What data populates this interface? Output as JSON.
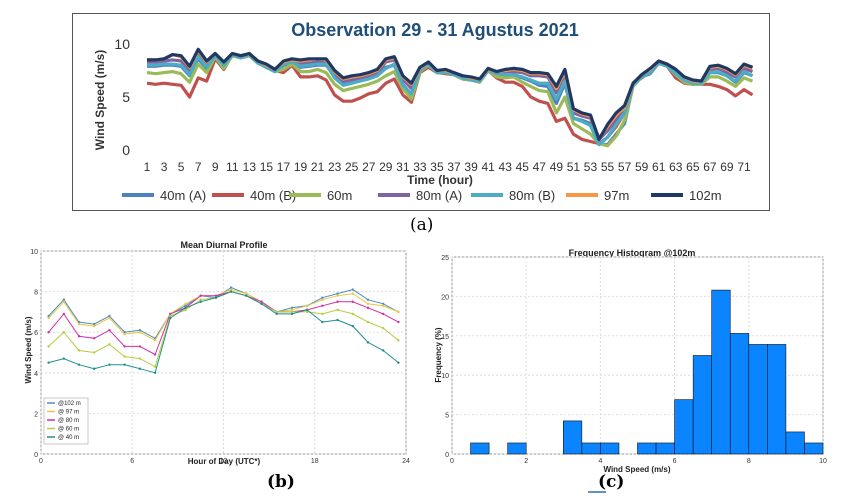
{
  "colors": {
    "s40a": "#4f81bd",
    "s40b": "#c0504d",
    "s60": "#9bbb59",
    "s80a": "#8064a2",
    "s80b": "#4bacc6",
    "s97": "#f79646",
    "s102": "#1f3864",
    "d102": "#4f8fc4",
    "d97": "#e8c840",
    "d80": "#d22fa8",
    "d60": "#b8cc40",
    "d40": "#1e8f8f",
    "hist": "#0a84ff",
    "title_a": "#1f4e79"
  },
  "panel_labels": {
    "a": "(a)",
    "b": "(b)",
    "c": "(c)"
  },
  "chart_data": [
    {
      "id": "a",
      "type": "line",
      "title": "Observation 29 - 31 Agustus 2021",
      "xlabel": "Time (hour)",
      "ylabel": "Wind Speed  (m/s)",
      "ylim": [
        0,
        10
      ],
      "yticks": [
        "0",
        "5",
        "10"
      ],
      "xticks": [
        "1",
        "3",
        "5",
        "7",
        "9",
        "11",
        "13",
        "15",
        "17",
        "19",
        "21",
        "23",
        "25",
        "27",
        "29",
        "31",
        "33",
        "35",
        "37",
        "39",
        "41",
        "43",
        "45",
        "47",
        "49",
        "51",
        "53",
        "55",
        "57",
        "59",
        "61",
        "63",
        "65",
        "67",
        "69",
        "71"
      ],
      "grid": false,
      "legend": "bottom",
      "x": [
        1,
        2,
        3,
        4,
        5,
        6,
        7,
        8,
        9,
        10,
        11,
        12,
        13,
        14,
        15,
        16,
        17,
        18,
        19,
        20,
        21,
        22,
        23,
        24,
        25,
        26,
        27,
        28,
        29,
        30,
        31,
        32,
        33,
        34,
        35,
        36,
        37,
        38,
        39,
        40,
        41,
        42,
        43,
        44,
        45,
        46,
        47,
        48,
        49,
        50,
        51,
        52,
        53,
        54,
        55,
        56,
        57,
        58,
        59,
        60,
        61,
        62,
        63,
        64,
        65,
        66,
        67,
        68,
        69,
        70,
        71,
        72
      ],
      "series": [
        {
          "name": "40m (A)",
          "color_key": "s40a",
          "values": [
            7.9,
            7.9,
            8.0,
            8.0,
            7.9,
            7.0,
            8.6,
            7.7,
            8.9,
            7.9,
            8.9,
            8.7,
            8.9,
            8.2,
            7.8,
            7.4,
            8.0,
            8.2,
            7.8,
            7.9,
            8.0,
            8.0,
            7.0,
            6.2,
            6.3,
            6.6,
            6.8,
            7.0,
            7.8,
            8.0,
            6.2,
            5.2,
            7.5,
            8.0,
            7.3,
            7.3,
            7.1,
            6.8,
            6.6,
            6.5,
            7.5,
            7.2,
            7.0,
            7.1,
            6.8,
            6.5,
            6.1,
            6.0,
            4.4,
            6.3,
            3.0,
            2.8,
            2.5,
            0.6,
            0.5,
            1.5,
            2.5,
            6.1,
            6.9,
            7.2,
            8.2,
            7.9,
            7.3,
            6.5,
            6.2,
            6.3,
            7.3,
            7.3,
            7.0,
            6.4,
            7.3,
            7.0
          ]
        },
        {
          "name": "40m (B)",
          "color_key": "s40b",
          "values": [
            6.3,
            6.2,
            6.3,
            6.2,
            6.1,
            5.0,
            6.8,
            6.5,
            8.6,
            7.6,
            9.0,
            8.7,
            9.0,
            8.2,
            7.9,
            7.5,
            7.3,
            8.0,
            6.9,
            6.9,
            7.0,
            6.6,
            5.2,
            4.6,
            4.6,
            4.9,
            5.3,
            5.5,
            6.3,
            6.7,
            5.2,
            4.5,
            7.3,
            7.8,
            7.3,
            7.2,
            7.1,
            6.7,
            6.6,
            6.4,
            7.5,
            6.8,
            6.4,
            6.4,
            6.0,
            5.0,
            4.6,
            4.4,
            2.7,
            3.0,
            1.5,
            1.0,
            0.8,
            0.6,
            1.2,
            2.2,
            3.5,
            6.2,
            6.8,
            7.4,
            8.2,
            7.9,
            6.8,
            6.3,
            6.2,
            6.2,
            6.2,
            6.0,
            5.7,
            5.1,
            5.7,
            5.2
          ]
        },
        {
          "name": "60m",
          "color_key": "s60",
          "values": [
            7.3,
            7.2,
            7.3,
            7.4,
            7.2,
            6.4,
            8.1,
            7.3,
            8.8,
            7.7,
            8.9,
            8.7,
            8.9,
            8.2,
            7.8,
            7.4,
            7.6,
            8.1,
            7.4,
            7.4,
            7.6,
            7.3,
            6.2,
            5.6,
            5.8,
            6.0,
            6.2,
            6.5,
            7.0,
            7.4,
            5.8,
            4.8,
            7.4,
            8.0,
            7.3,
            7.3,
            7.1,
            6.7,
            6.6,
            6.4,
            7.5,
            6.9,
            6.8,
            6.9,
            6.4,
            6.0,
            5.6,
            5.5,
            3.5,
            5.0,
            2.5,
            2.0,
            1.5,
            0.6,
            0.4,
            1.3,
            2.8,
            6.0,
            6.9,
            7.3,
            8.2,
            7.9,
            7.1,
            6.4,
            6.2,
            6.2,
            6.9,
            6.9,
            6.5,
            6.0,
            6.8,
            6.5
          ]
        },
        {
          "name": "80m (A)",
          "color_key": "s80a",
          "values": [
            8.3,
            8.3,
            8.4,
            8.5,
            8.4,
            7.5,
            9.0,
            8.1,
            9.0,
            8.2,
            9.0,
            8.8,
            9.0,
            8.3,
            7.9,
            7.5,
            8.2,
            8.4,
            8.2,
            8.2,
            8.3,
            8.3,
            7.2,
            6.5,
            6.6,
            6.8,
            7.0,
            7.3,
            8.3,
            8.5,
            6.7,
            5.8,
            7.6,
            8.2,
            7.4,
            7.4,
            7.2,
            6.9,
            6.7,
            6.6,
            7.6,
            7.3,
            7.4,
            7.4,
            7.3,
            7.0,
            7.0,
            6.9,
            5.4,
            7.0,
            3.5,
            3.2,
            3.0,
            1.0,
            1.8,
            2.8,
            3.8,
            6.2,
            7.0,
            7.5,
            8.3,
            8.0,
            7.4,
            6.7,
            6.4,
            6.5,
            7.6,
            7.7,
            7.3,
            6.9,
            7.7,
            7.4
          ]
        },
        {
          "name": "80m (B)",
          "color_key": "s80b",
          "values": [
            8.0,
            8.0,
            8.1,
            8.1,
            8.0,
            7.1,
            8.8,
            7.8,
            8.9,
            8.0,
            9.0,
            8.7,
            9.0,
            8.2,
            7.8,
            7.4,
            8.1,
            8.3,
            7.9,
            8.0,
            8.1,
            8.1,
            6.8,
            6.1,
            6.3,
            6.5,
            6.7,
            7.0,
            7.7,
            8.1,
            6.1,
            5.3,
            7.5,
            8.1,
            7.3,
            7.3,
            7.1,
            6.8,
            6.6,
            6.5,
            7.5,
            7.2,
            7.1,
            7.1,
            6.9,
            6.6,
            6.3,
            6.3,
            4.8,
            6.5,
            3.0,
            2.7,
            2.3,
            0.5,
            1.2,
            2.4,
            3.5,
            6.1,
            6.9,
            7.3,
            8.2,
            7.9,
            7.2,
            6.6,
            6.3,
            6.3,
            7.3,
            7.4,
            7.0,
            6.5,
            7.4,
            7.0
          ]
        },
        {
          "name": "97m",
          "color_key": "s97",
          "values": [
            8.5,
            8.5,
            8.6,
            9.0,
            8.8,
            7.8,
            9.4,
            8.3,
            9.1,
            8.3,
            9.1,
            8.9,
            9.1,
            8.4,
            8.0,
            7.6,
            8.3,
            8.5,
            8.4,
            8.5,
            8.6,
            8.5,
            7.4,
            6.7,
            6.9,
            7.0,
            7.2,
            7.5,
            8.5,
            8.7,
            6.9,
            6.2,
            7.7,
            8.3,
            7.5,
            7.5,
            7.3,
            7.0,
            6.8,
            6.7,
            7.6,
            7.4,
            7.5,
            7.6,
            7.5,
            7.2,
            7.2,
            7.1,
            5.8,
            7.4,
            3.8,
            3.4,
            3.2,
            1.1,
            2.2,
            3.3,
            4.0,
            6.3,
            7.1,
            7.6,
            8.4,
            8.1,
            7.6,
            6.9,
            6.5,
            6.5,
            7.8,
            7.9,
            7.6,
            7.1,
            8.0,
            7.7
          ]
        },
        {
          "name": "102m",
          "color_key": "s102",
          "values": [
            8.5,
            8.5,
            8.6,
            9.0,
            8.9,
            7.9,
            9.5,
            8.4,
            9.1,
            8.3,
            9.1,
            8.9,
            9.1,
            8.4,
            8.1,
            7.6,
            8.4,
            8.6,
            8.5,
            8.6,
            8.6,
            8.6,
            7.5,
            6.8,
            7.0,
            7.1,
            7.3,
            7.6,
            8.6,
            8.8,
            7.0,
            6.3,
            7.8,
            8.3,
            7.5,
            7.6,
            7.3,
            7.0,
            6.9,
            6.7,
            7.7,
            7.4,
            7.6,
            7.7,
            7.6,
            7.3,
            7.3,
            7.2,
            6.0,
            7.6,
            3.9,
            3.5,
            3.3,
            1.0,
            2.4,
            3.5,
            4.2,
            6.3,
            7.1,
            7.7,
            8.4,
            8.1,
            7.6,
            6.9,
            6.6,
            6.5,
            7.9,
            8.0,
            7.7,
            7.2,
            8.1,
            7.8
          ]
        }
      ]
    },
    {
      "id": "b",
      "type": "line",
      "title": "Mean Diurnal Profile",
      "xlabel": "Hour of Day (UTC*)",
      "ylabel": "Wind Speed (m/s)",
      "xlim": [
        0,
        24
      ],
      "ylim": [
        0,
        10
      ],
      "xticks": [
        "0",
        "6",
        "12",
        "18",
        "24"
      ],
      "yticks": [
        "0",
        "2",
        "4",
        "6",
        "8",
        "10"
      ],
      "grid": true,
      "legend": "bottom-left",
      "x": [
        0.5,
        1.5,
        2.5,
        3.5,
        4.5,
        5.5,
        6.5,
        7.5,
        8.5,
        9.5,
        10.5,
        11.5,
        12.5,
        13.5,
        14.5,
        15.5,
        16.5,
        17.5,
        18.5,
        19.5,
        20.5,
        21.5,
        22.5,
        23.5
      ],
      "series": [
        {
          "name": "@102 m",
          "color_key": "d102",
          "values": [
            6.8,
            7.6,
            6.5,
            6.4,
            6.8,
            6.0,
            6.1,
            5.7,
            6.9,
            7.3,
            7.8,
            7.7,
            8.2,
            7.9,
            7.5,
            7.0,
            7.2,
            7.3,
            7.7,
            7.9,
            8.1,
            7.6,
            7.4,
            7.0
          ]
        },
        {
          "name": "@ 97 m",
          "color_key": "d97",
          "values": [
            6.7,
            7.5,
            6.4,
            6.3,
            6.7,
            5.9,
            6.0,
            5.6,
            6.9,
            7.4,
            7.8,
            7.8,
            8.1,
            7.9,
            7.5,
            7.0,
            7.1,
            7.3,
            7.6,
            7.8,
            7.9,
            7.4,
            7.3,
            7.0
          ]
        },
        {
          "name": "@ 80 m",
          "color_key": "d80",
          "values": [
            6.0,
            6.9,
            5.8,
            5.7,
            6.1,
            5.3,
            5.3,
            4.9,
            6.9,
            7.2,
            7.8,
            7.8,
            8.0,
            7.8,
            7.5,
            7.0,
            7.0,
            7.1,
            7.3,
            7.5,
            7.5,
            7.2,
            6.9,
            6.5
          ]
        },
        {
          "name": "@ 60 m",
          "color_key": "d60",
          "values": [
            5.3,
            6.0,
            5.1,
            5.0,
            5.4,
            4.8,
            4.7,
            4.3,
            6.8,
            7.1,
            7.6,
            7.7,
            8.0,
            7.8,
            7.4,
            7.0,
            7.0,
            7.0,
            6.9,
            7.1,
            6.9,
            6.5,
            6.2,
            5.6
          ]
        },
        {
          "name": "@ 40 m",
          "color_key": "d40",
          "values": [
            4.5,
            4.7,
            4.4,
            4.2,
            4.4,
            4.4,
            4.2,
            4.0,
            6.7,
            7.2,
            7.5,
            7.7,
            8.0,
            7.8,
            7.4,
            6.9,
            6.9,
            7.1,
            6.5,
            6.6,
            6.3,
            5.5,
            5.1,
            4.5
          ]
        }
      ]
    },
    {
      "id": "c",
      "type": "bar",
      "title": "Frequency Histogram @102m",
      "xlabel": "Wind Speed (m/s)",
      "ylabel": "Frequency (%)",
      "xlim": [
        0,
        10
      ],
      "ylim": [
        0,
        25
      ],
      "xticks": [
        "0",
        "2",
        "4",
        "6",
        "8",
        "10"
      ],
      "yticks": [
        "0",
        "5",
        "10",
        "15",
        "20",
        "25"
      ],
      "grid": true,
      "bin_width": 0.5,
      "bin_starts": [
        0.5,
        1.0,
        1.5,
        2.0,
        2.5,
        3.0,
        3.5,
        4.0,
        4.5,
        5.0,
        5.5,
        6.0,
        6.5,
        7.0,
        7.5,
        8.0,
        8.5,
        9.0,
        9.5
      ],
      "values": [
        1.4,
        0,
        1.4,
        0,
        0,
        4.2,
        1.4,
        1.4,
        0,
        1.4,
        1.4,
        6.9,
        12.5,
        20.8,
        15.3,
        13.9,
        13.9,
        2.8,
        1.4
      ]
    }
  ]
}
